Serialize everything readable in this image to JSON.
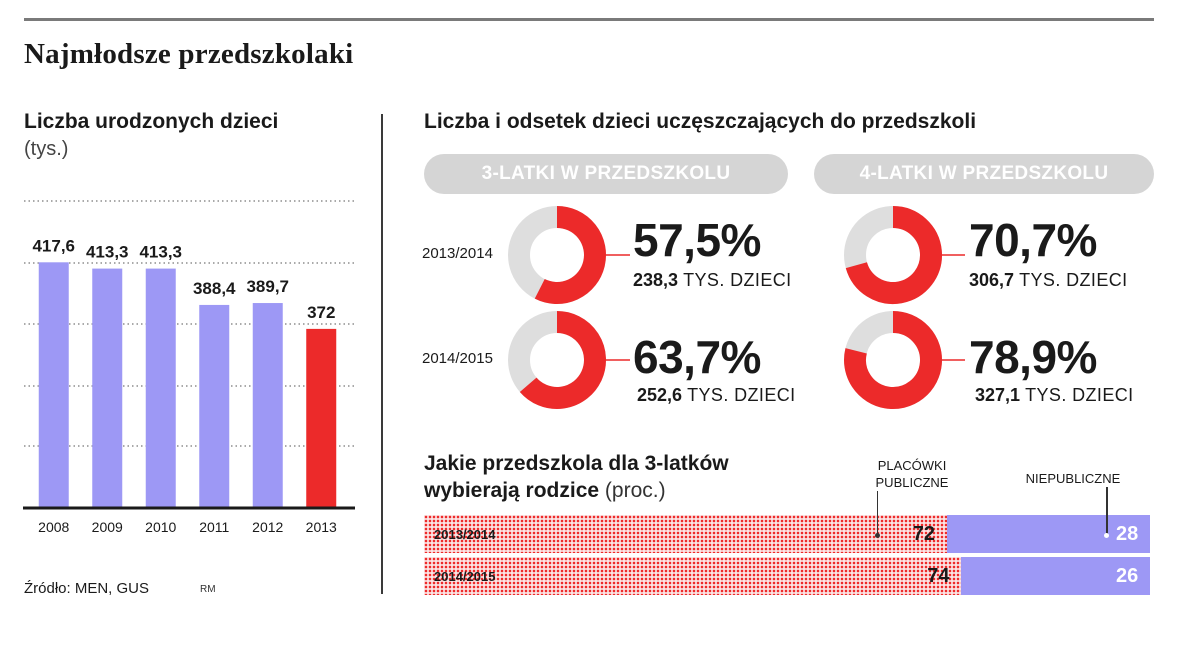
{
  "title": "Najmłodsze przedszkolaki",
  "births_panel": {
    "title": "Liczba urodzonych dzieci",
    "unit": "(tys.)"
  },
  "attendance_panel": {
    "title": "Liczba i odsetek dzieci uczęszczających do przedszkoli",
    "group_3": "3-LATKI W PRZEDSZKOLU",
    "group_4": "4-LATKI W PRZEDSZKOLU",
    "count_suffix": "TYS. DZIECI",
    "stats": [
      {
        "year": "2013/2014",
        "three": {
          "pct_label": "57,5%",
          "count": "238,3"
        },
        "four": {
          "pct_label": "70,7%",
          "count": "306,7"
        }
      },
      {
        "year": "2014/2015",
        "three": {
          "pct_label": "63,7%",
          "count": "252,6"
        },
        "four": {
          "pct_label": "78,9%",
          "count": "327,1"
        }
      }
    ]
  },
  "choice_panel": {
    "title_line1": "Jakie przedszkola dla 3-latków",
    "title_line2_bold": "wybierają rodzice",
    "title_line2_thin": "(proc.)",
    "public_label_1": "PLACÓWKI",
    "public_label_2": "PUBLICZNE",
    "private_label": "NIEPUBLICZNE"
  },
  "source": "Źródło: MEN, GUS",
  "source_mark": "RM",
  "colors": {
    "accent_red": "#ec2a2a",
    "bar_lavender": "#9d98f5",
    "donut_grey": "#dedede",
    "pill_grey": "#d5d5d5"
  },
  "chart_data": [
    {
      "type": "bar",
      "title": "Liczba urodzonych dzieci",
      "ylabel": "(tys.)",
      "categories": [
        "2008",
        "2009",
        "2010",
        "2011",
        "2012",
        "2013"
      ],
      "values": [
        417.6,
        413.3,
        413.3,
        388.4,
        389.7,
        372
      ],
      "value_labels": [
        "417,6",
        "413,3",
        "413,3",
        "388,4",
        "389,7",
        "372"
      ],
      "highlight_index": 5,
      "grid": true
    },
    {
      "type": "pie",
      "title": "Liczba i odsetek dzieci uczęszczających do przedszkoli",
      "series": [
        {
          "name": "3-LATKI W PRZEDSZKOLU",
          "categories": [
            "2013/2014",
            "2014/2015"
          ],
          "values": [
            57.5,
            63.7
          ],
          "counts": [
            238.3,
            252.6
          ]
        },
        {
          "name": "4-LATKI W PRZEDSZKOLU",
          "categories": [
            "2013/2014",
            "2014/2015"
          ],
          "values": [
            70.7,
            78.9
          ],
          "counts": [
            306.7,
            327.1
          ]
        }
      ]
    },
    {
      "type": "bar",
      "title": "Jakie przedszkola dla 3-latków wybierają rodzice",
      "ylabel": "(proc.)",
      "categories": [
        "2013/2014",
        "2014/2015"
      ],
      "series": [
        {
          "name": "PLACÓWKI PUBLICZNE",
          "values": [
            72,
            74
          ]
        },
        {
          "name": "NIEPUBLICZNE",
          "values": [
            28,
            26
          ]
        }
      ]
    }
  ]
}
